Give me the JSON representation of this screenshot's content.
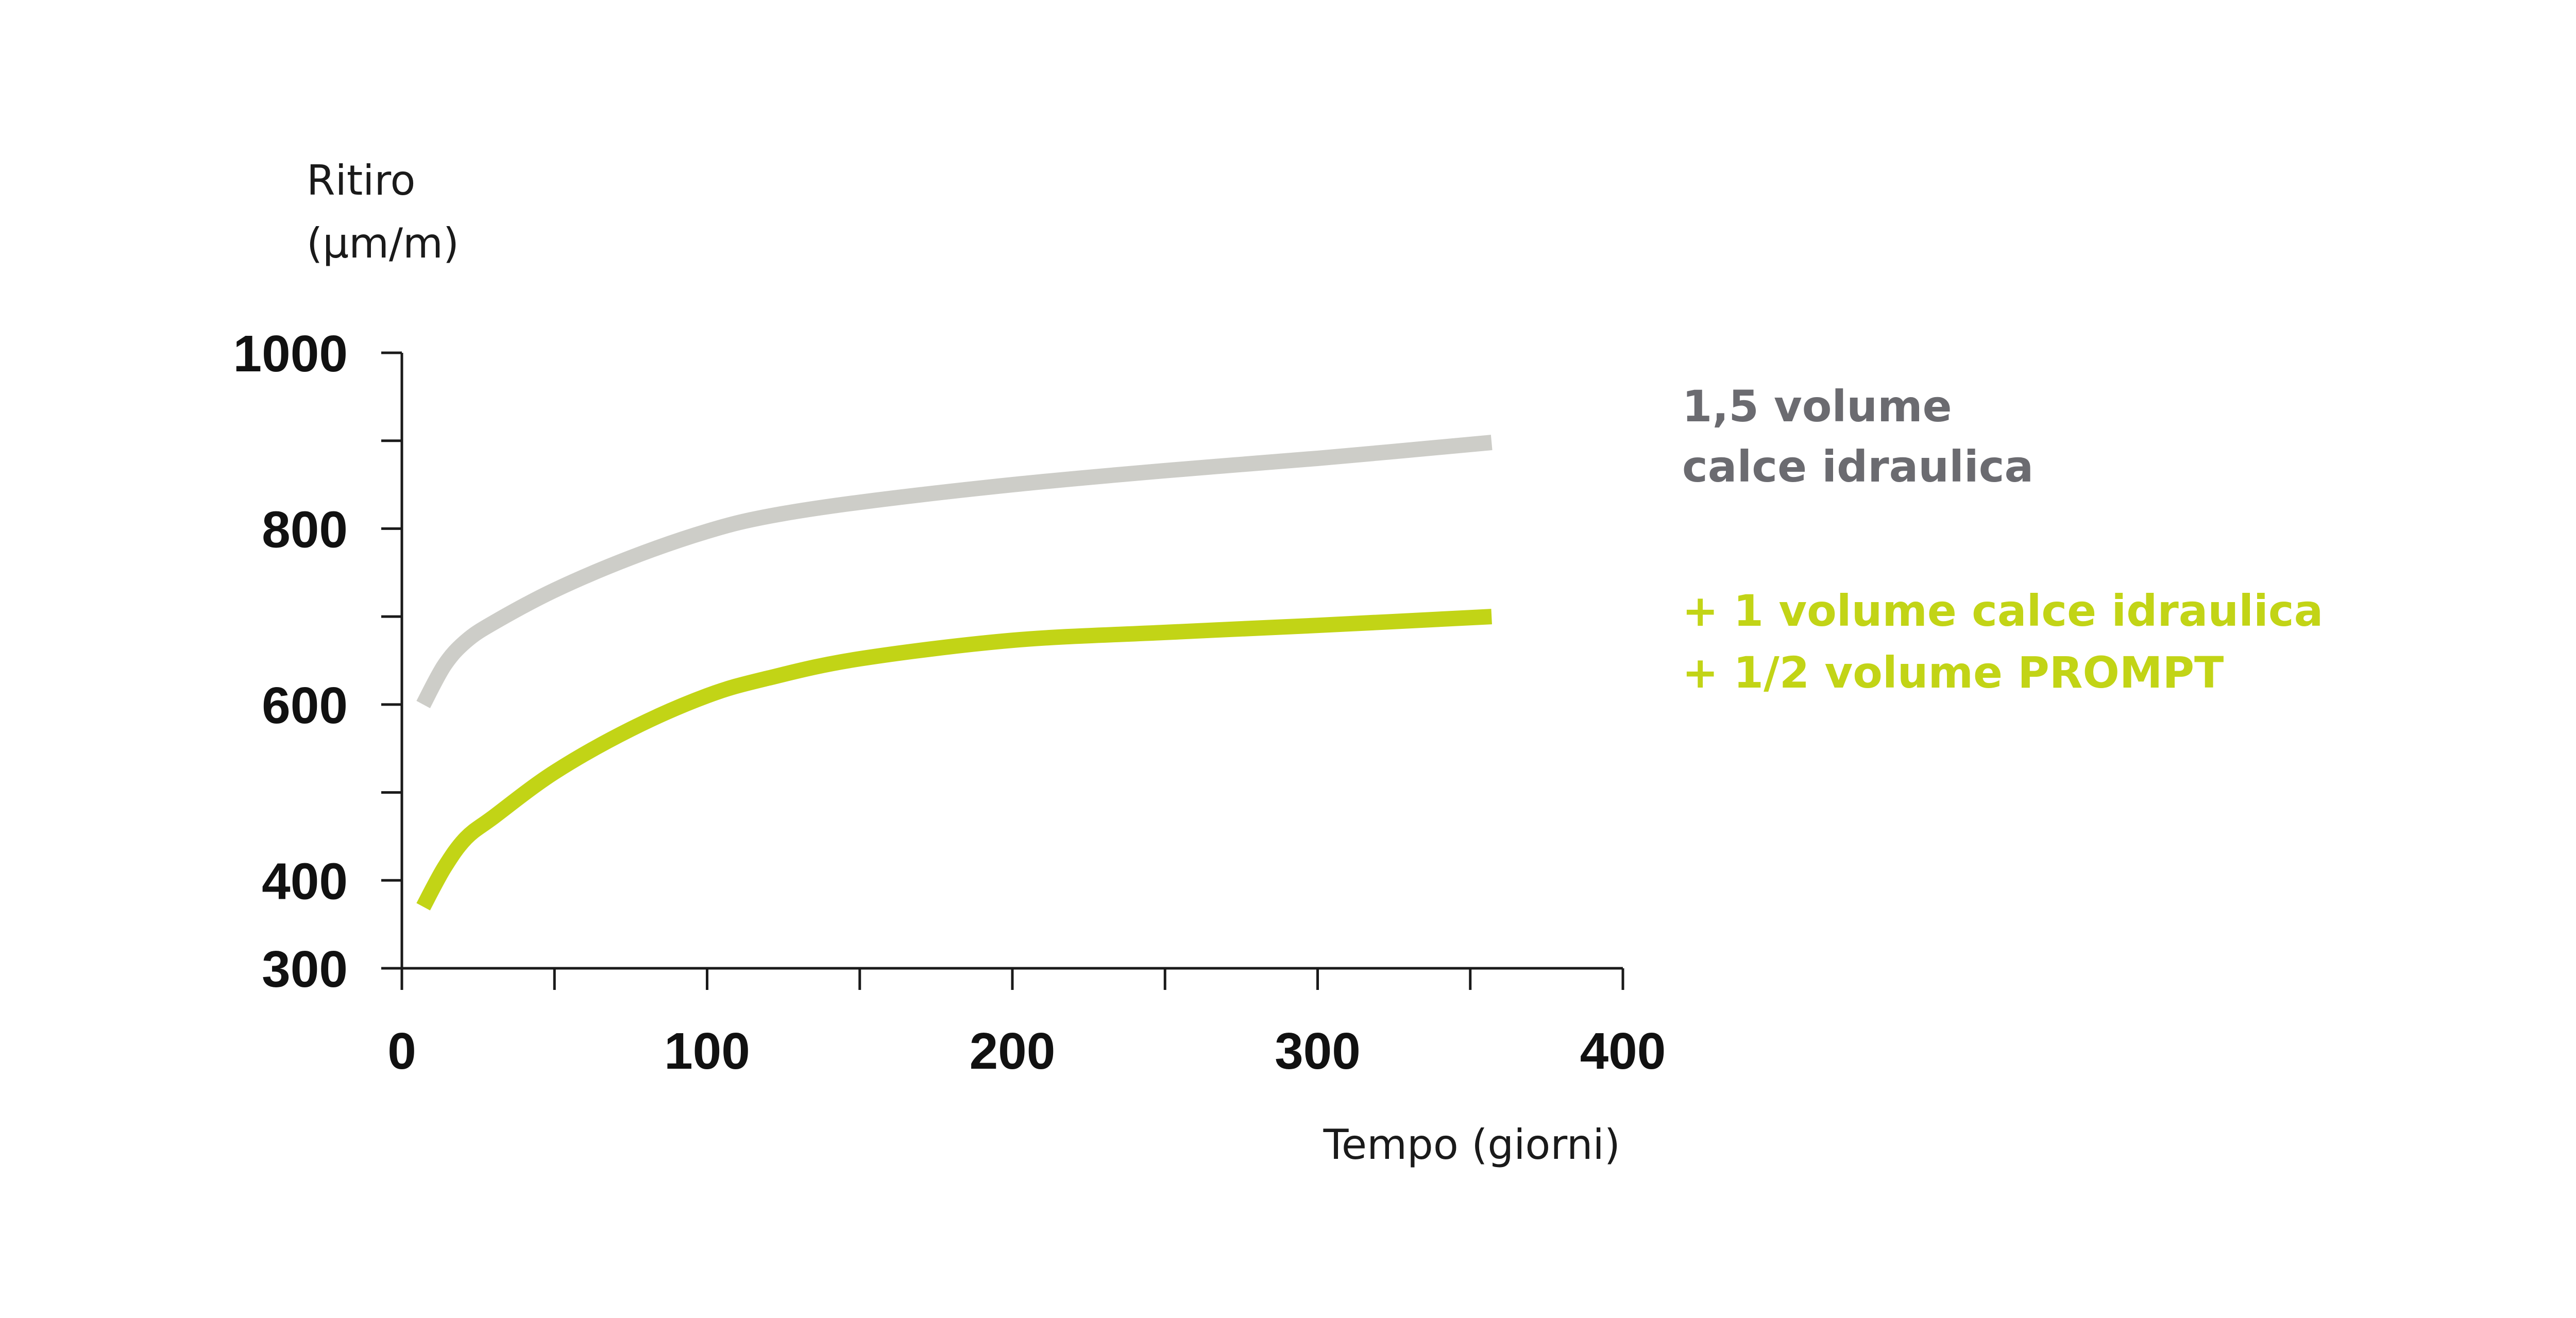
{
  "chart_data": {
    "type": "line",
    "ylabel": [
      "Ritiro",
      "(µm/m)"
    ],
    "xlabel": "Tempo (giorni)",
    "xlim": [
      0,
      400
    ],
    "ylim": [
      300,
      1000
    ],
    "x_ticks": [
      0,
      100,
      200,
      300,
      400
    ],
    "x_minor_ticks": [
      50,
      150,
      250,
      350
    ],
    "y_ticks": [
      300,
      400,
      600,
      800,
      1000
    ],
    "y_minor_ticks": [
      500,
      700,
      900
    ],
    "grid": false,
    "legend_position": "right",
    "series": [
      {
        "name": [
          "1,5 volume",
          "calce idraulica"
        ],
        "color": "#cdcdc8",
        "label_color": "#6b6b70",
        "points": [
          [
            7,
            600
          ],
          [
            14,
            645
          ],
          [
            21,
            672
          ],
          [
            30,
            693
          ],
          [
            50,
            730
          ],
          [
            75,
            767
          ],
          [
            100,
            797
          ],
          [
            120,
            814
          ],
          [
            150,
            830
          ],
          [
            200,
            850
          ],
          [
            250,
            866
          ],
          [
            300,
            880
          ],
          [
            357,
            898
          ]
        ]
      },
      {
        "name": [
          "+ 1 volume calce idraulica",
          "+ 1/2 volume PROMPT"
        ],
        "color": "#c2d416",
        "label_color": "#c2d416",
        "points": [
          [
            7,
            370
          ],
          [
            14,
            415
          ],
          [
            21,
            448
          ],
          [
            30,
            472
          ],
          [
            50,
            523
          ],
          [
            75,
            572
          ],
          [
            100,
            610
          ],
          [
            120,
            630
          ],
          [
            150,
            652
          ],
          [
            200,
            673
          ],
          [
            250,
            682
          ],
          [
            300,
            690
          ],
          [
            357,
            700
          ]
        ]
      }
    ]
  }
}
